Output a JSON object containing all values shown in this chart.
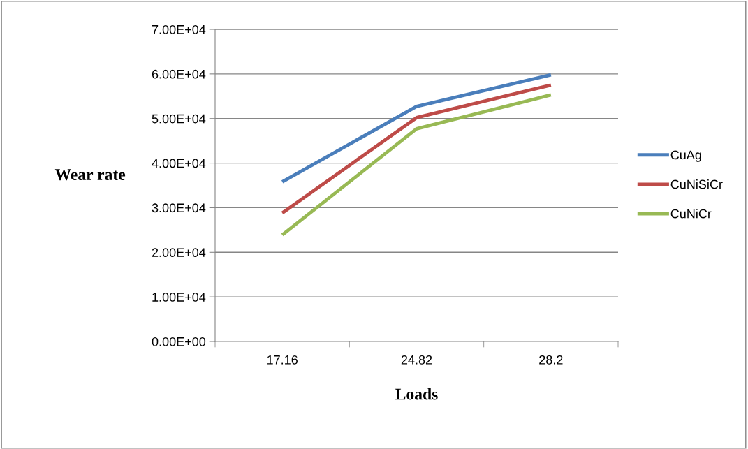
{
  "chart_data": {
    "type": "line",
    "xlabel": "Loads",
    "ylabel": "Wear rate",
    "categories": [
      "17.16",
      "24.82",
      "28.2"
    ],
    "series": [
      {
        "name": "CuAg",
        "color": "#4a7ebb",
        "values": [
          35800,
          52700,
          59800
        ]
      },
      {
        "name": "CuNiSiCr",
        "color": "#be4b48",
        "values": [
          28800,
          50200,
          57500
        ]
      },
      {
        "name": "CuNiCr",
        "color": "#98b954",
        "values": [
          23900,
          47700,
          55300
        ]
      }
    ],
    "ylim": [
      0,
      70000
    ],
    "yticks": [
      {
        "value": 0,
        "label": "0.00E+00"
      },
      {
        "value": 10000,
        "label": "1.00E+04"
      },
      {
        "value": 20000,
        "label": "2.00E+04"
      },
      {
        "value": 30000,
        "label": "3.00E+04"
      },
      {
        "value": 40000,
        "label": "4.00E+04"
      },
      {
        "value": 50000,
        "label": "5.00E+04"
      },
      {
        "value": 60000,
        "label": "6.00E+04"
      },
      {
        "value": 70000,
        "label": "7.00E+04"
      }
    ],
    "grid": "y",
    "legend": "right",
    "marker": "none",
    "line_style": "solid"
  }
}
